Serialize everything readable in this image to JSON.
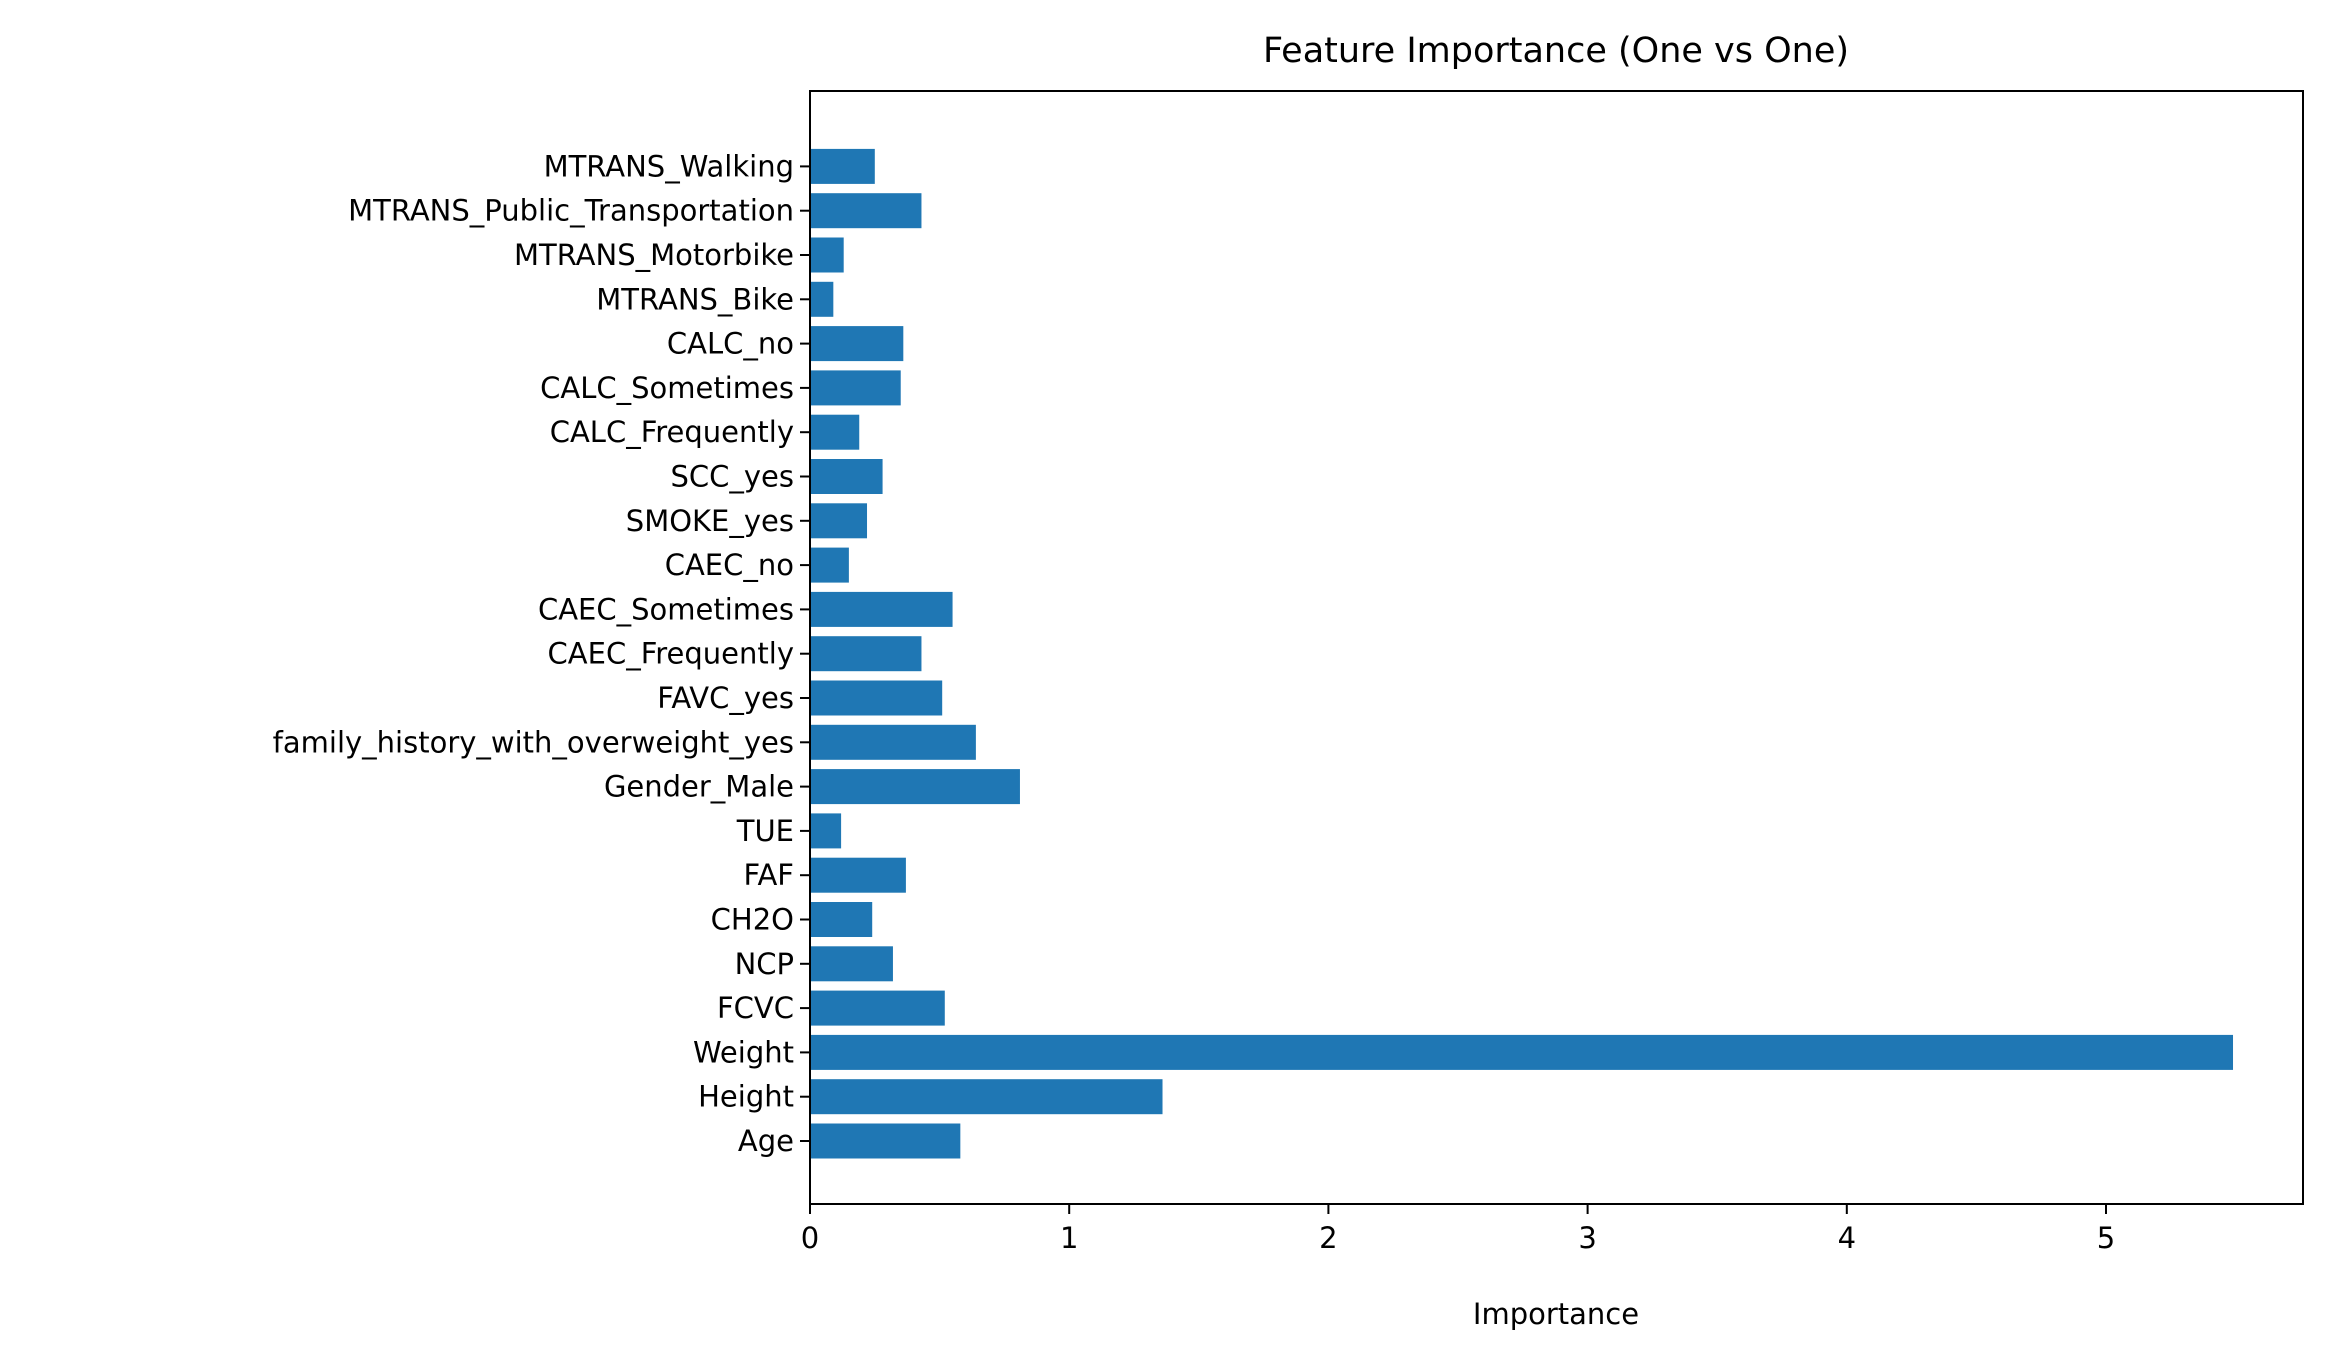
{
  "chart_data": {
    "type": "bar",
    "orientation": "horizontal",
    "title": "Feature Importance (One vs One)",
    "xlabel": "Importance",
    "ylabel": "",
    "xlim": [
      0,
      5.76
    ],
    "xticks": [
      0,
      1,
      2,
      3,
      4,
      5
    ],
    "grid": false,
    "legend": "none",
    "bar_color": "#1f77b4",
    "categories": [
      "Age",
      "Height",
      "Weight",
      "FCVC",
      "NCP",
      "CH2O",
      "FAF",
      "TUE",
      "Gender_Male",
      "family_history_with_overweight_yes",
      "FAVC_yes",
      "CAEC_Frequently",
      "CAEC_Sometimes",
      "CAEC_no",
      "SMOKE_yes",
      "SCC_yes",
      "CALC_Frequently",
      "CALC_Sometimes",
      "CALC_no",
      "MTRANS_Bike",
      "MTRANS_Motorbike",
      "MTRANS_Public_Transportation",
      "MTRANS_Walking"
    ],
    "values": [
      0.58,
      1.36,
      5.49,
      0.52,
      0.32,
      0.24,
      0.37,
      0.12,
      0.81,
      0.64,
      0.51,
      0.43,
      0.55,
      0.15,
      0.22,
      0.28,
      0.19,
      0.35,
      0.36,
      0.09,
      0.13,
      0.43,
      0.25
    ]
  }
}
